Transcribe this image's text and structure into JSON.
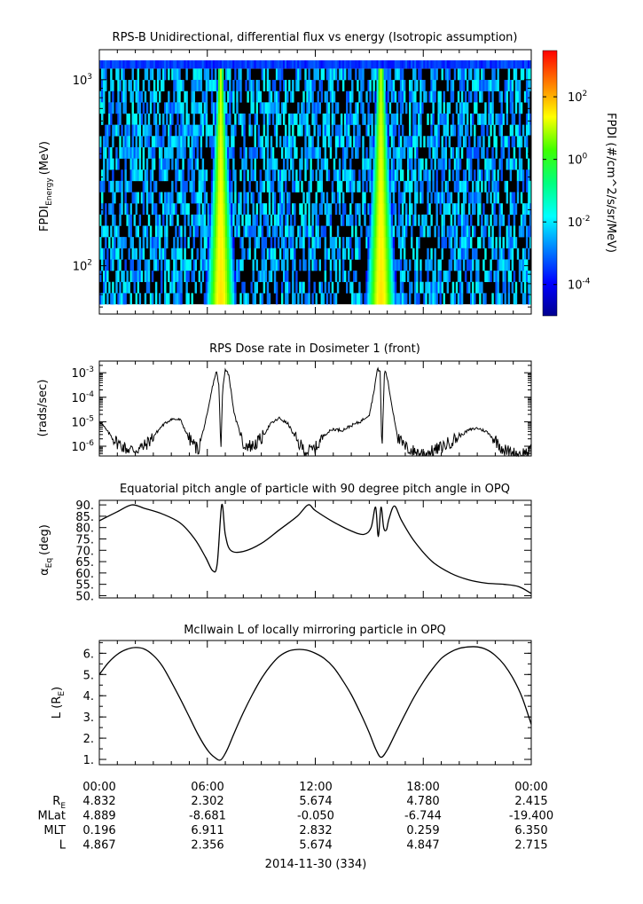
{
  "chart_data": [
    {
      "type": "heatmap",
      "title": "RPS-B  Unidirectional, differential flux vs energy (Isotropic assumption)",
      "ylabel": "FPDI",
      "ylabel_sub": "Energy",
      "ylabel_unit": "(MeV)",
      "yscale": "log",
      "ylim": [
        55,
        1450
      ],
      "yticks": [
        {
          "v": 100,
          "base": "10",
          "exp": "2"
        },
        {
          "v": 1000,
          "base": "10",
          "exp": "3"
        }
      ],
      "x_hours": [
        0,
        24
      ],
      "energy_bands": 22,
      "colorbar": {
        "label": "FPDI (#/cm^2/s/sr/MeV)",
        "scale": "log",
        "range": [
          1e-05,
          3000
        ],
        "ticks": [
          {
            "v": 0.0001,
            "base": "10",
            "exp": "-4"
          },
          {
            "v": 0.01,
            "base": "10",
            "exp": "-2"
          },
          {
            "v": 1,
            "base": "10",
            "exp": "0"
          },
          {
            "v": 100,
            "base": "10",
            "exp": "2"
          }
        ],
        "colors": [
          "#00008f",
          "#0000ff",
          "#007fff",
          "#00ffff",
          "#00ff7f",
          "#3fff00",
          "#ffff00",
          "#ff7f00",
          "#ff0000"
        ]
      },
      "belt_crossings": [
        {
          "center_hours": 6.75,
          "bottom_halfwidth_hours": 0.55,
          "top_halfwidth_hours": 0.12,
          "peak_log_flux": 1.6
        },
        {
          "center_hours": 15.65,
          "bottom_halfwidth_hours": 0.55,
          "top_halfwidth_hours": 0.15,
          "peak_log_flux": 1.6
        }
      ]
    },
    {
      "type": "line",
      "title": "RPS  Dose rate in Dosimeter 1 (front)",
      "ylabel": "(rads/sec)",
      "yscale": "log",
      "ylim": [
        4e-07,
        0.003
      ],
      "yticks": [
        {
          "v": 1e-06,
          "base": "10",
          "exp": "-6"
        },
        {
          "v": 1e-05,
          "base": "10",
          "exp": "-5"
        },
        {
          "v": 0.0001,
          "base": "10",
          "exp": "-4"
        },
        {
          "v": 0.001,
          "base": "10",
          "exp": "-3"
        }
      ],
      "x_hours": [
        0,
        0.5,
        1.0,
        1.5,
        2.0,
        2.5,
        3.0,
        3.5,
        4.0,
        4.5,
        5.0,
        5.5,
        6.0,
        6.3,
        6.5,
        6.65,
        6.75,
        6.85,
        7.0,
        7.2,
        7.5,
        8.0,
        8.5,
        9.0,
        9.5,
        10.0,
        10.5,
        11.0,
        11.5,
        12.0,
        12.5,
        13.0,
        13.5,
        14.0,
        14.5,
        15.0,
        15.2,
        15.45,
        15.6,
        15.7,
        15.85,
        16.0,
        16.3,
        16.6,
        17.0,
        17.5,
        18.0,
        18.5,
        19.0,
        19.5,
        20.0,
        20.5,
        21.0,
        21.5,
        22.0,
        22.5,
        23.0,
        23.5,
        24.0
      ],
      "values": [
        1.1e-05,
        3.6e-06,
        1.4e-06,
        8e-07,
        7e-07,
        1e-06,
        2.5e-06,
        7e-06,
        1.3e-05,
        1.2e-05,
        2e-06,
        7e-07,
        2e-05,
        0.0003,
        0.0012,
        0.0003,
        5e-07,
        0.0002,
        0.0015,
        0.0008,
        2e-05,
        1.2e-06,
        1e-06,
        2e-06,
        8e-06,
        1.4e-05,
        8e-06,
        1.5e-06,
        6e-07,
        8e-07,
        3e-06,
        5e-06,
        4.5e-06,
        7e-06,
        1e-05,
        2e-05,
        0.0001,
        0.0014,
        0.0012,
        5e-07,
        0.0015,
        0.0006,
        3e-05,
        2e-06,
        9e-07,
        6e-07,
        5e-07,
        6e-07,
        9e-07,
        1.5e-06,
        2.5e-06,
        4.5e-06,
        5.5e-06,
        4e-06,
        1.8e-06,
        7e-07,
        5e-07,
        5e-07,
        6e-07
      ]
    },
    {
      "type": "line",
      "title": "Equatorial pitch angle of particle with 90 degree pitch angle in OPQ",
      "ylabel": "α",
      "ylabel_sub": "Eq",
      "ylabel_unit": "(deg)",
      "ylim": [
        49,
        92
      ],
      "yticks": [
        "50.",
        "55.",
        "60.",
        "65.",
        "70.",
        "75.",
        "80.",
        "85.",
        "90."
      ],
      "ytick_values": [
        50,
        55,
        60,
        65,
        70,
        75,
        80,
        85,
        90
      ],
      "x_hours": [
        0,
        1.0,
        1.8,
        2.5,
        3.5,
        4.5,
        5.3,
        5.9,
        6.3,
        6.55,
        6.8,
        7.0,
        7.3,
        8.0,
        9.0,
        10.0,
        11.0,
        11.6,
        12.0,
        13.0,
        14.0,
        14.7,
        15.1,
        15.35,
        15.5,
        15.65,
        15.8,
        15.95,
        16.1,
        16.4,
        16.8,
        17.5,
        18.5,
        19.5,
        20.5,
        21.5,
        22.5,
        23.3,
        24.0
      ],
      "values": [
        83,
        87,
        90,
        88.5,
        86,
        82,
        75,
        67,
        61,
        64,
        90,
        77,
        70,
        69.5,
        73,
        79,
        85,
        90,
        87.5,
        82.5,
        78.5,
        77,
        80,
        89,
        76,
        89,
        80,
        79,
        84,
        89.5,
        83,
        74,
        65,
        60,
        57,
        55.5,
        55,
        54,
        51
      ]
    },
    {
      "type": "line",
      "title": "McIlwain L of locally mirroring particle in OPQ",
      "ylabel": "L (R",
      "ylabel_sub": "E",
      "ylabel_unit": ")",
      "ylim": [
        0.75,
        6.6
      ],
      "yticks": [
        "1.",
        "2.",
        "3.",
        "4.",
        "5.",
        "6."
      ],
      "ytick_values": [
        1,
        2,
        3,
        4,
        5,
        6
      ],
      "x_hours": [
        0,
        0.5,
        1.0,
        1.5,
        2.0,
        2.5,
        3.0,
        3.5,
        4.0,
        4.5,
        5.0,
        5.5,
        6.0,
        6.4,
        6.75,
        7.1,
        7.5,
        8.0,
        8.5,
        9.0,
        9.5,
        10.0,
        10.5,
        11.0,
        11.5,
        12.0,
        12.5,
        13.0,
        13.5,
        14.0,
        14.5,
        15.0,
        15.35,
        15.65,
        16.0,
        16.5,
        17.0,
        17.5,
        18.0,
        18.5,
        19.0,
        19.5,
        20.0,
        20.5,
        21.0,
        21.5,
        22.0,
        22.5,
        23.0,
        23.5,
        24.0
      ],
      "values": [
        5.0,
        5.55,
        5.95,
        6.18,
        6.27,
        6.2,
        5.9,
        5.4,
        4.65,
        3.85,
        3.0,
        2.15,
        1.45,
        1.1,
        0.98,
        1.45,
        2.25,
        3.2,
        4.05,
        4.8,
        5.4,
        5.85,
        6.1,
        6.18,
        6.15,
        6.0,
        5.75,
        5.35,
        4.75,
        4.05,
        3.2,
        2.25,
        1.5,
        1.1,
        1.45,
        2.3,
        3.15,
        3.95,
        4.65,
        5.25,
        5.75,
        6.05,
        6.23,
        6.3,
        6.3,
        6.18,
        5.9,
        5.45,
        4.8,
        3.9,
        2.65
      ]
    }
  ],
  "x_axis": {
    "tick_labels": [
      "00:00",
      "06:00",
      "12:00",
      "18:00",
      "00:00"
    ],
    "ephemeris": [
      {
        "label": "R",
        "label_sub": "E",
        "values": [
          "4.832",
          "2.302",
          "5.674",
          "4.780",
          "2.415"
        ]
      },
      {
        "label": "MLat",
        "values": [
          "4.889",
          "-8.681",
          "-0.050",
          "-6.744",
          "-19.400"
        ]
      },
      {
        "label": "MLT",
        "values": [
          "0.196",
          "6.911",
          "2.832",
          "0.259",
          "6.350"
        ]
      },
      {
        "label": "L",
        "values": [
          "4.867",
          "2.356",
          "5.674",
          "4.847",
          "2.715"
        ]
      }
    ],
    "date_label": "2014-11-30 (334)"
  }
}
